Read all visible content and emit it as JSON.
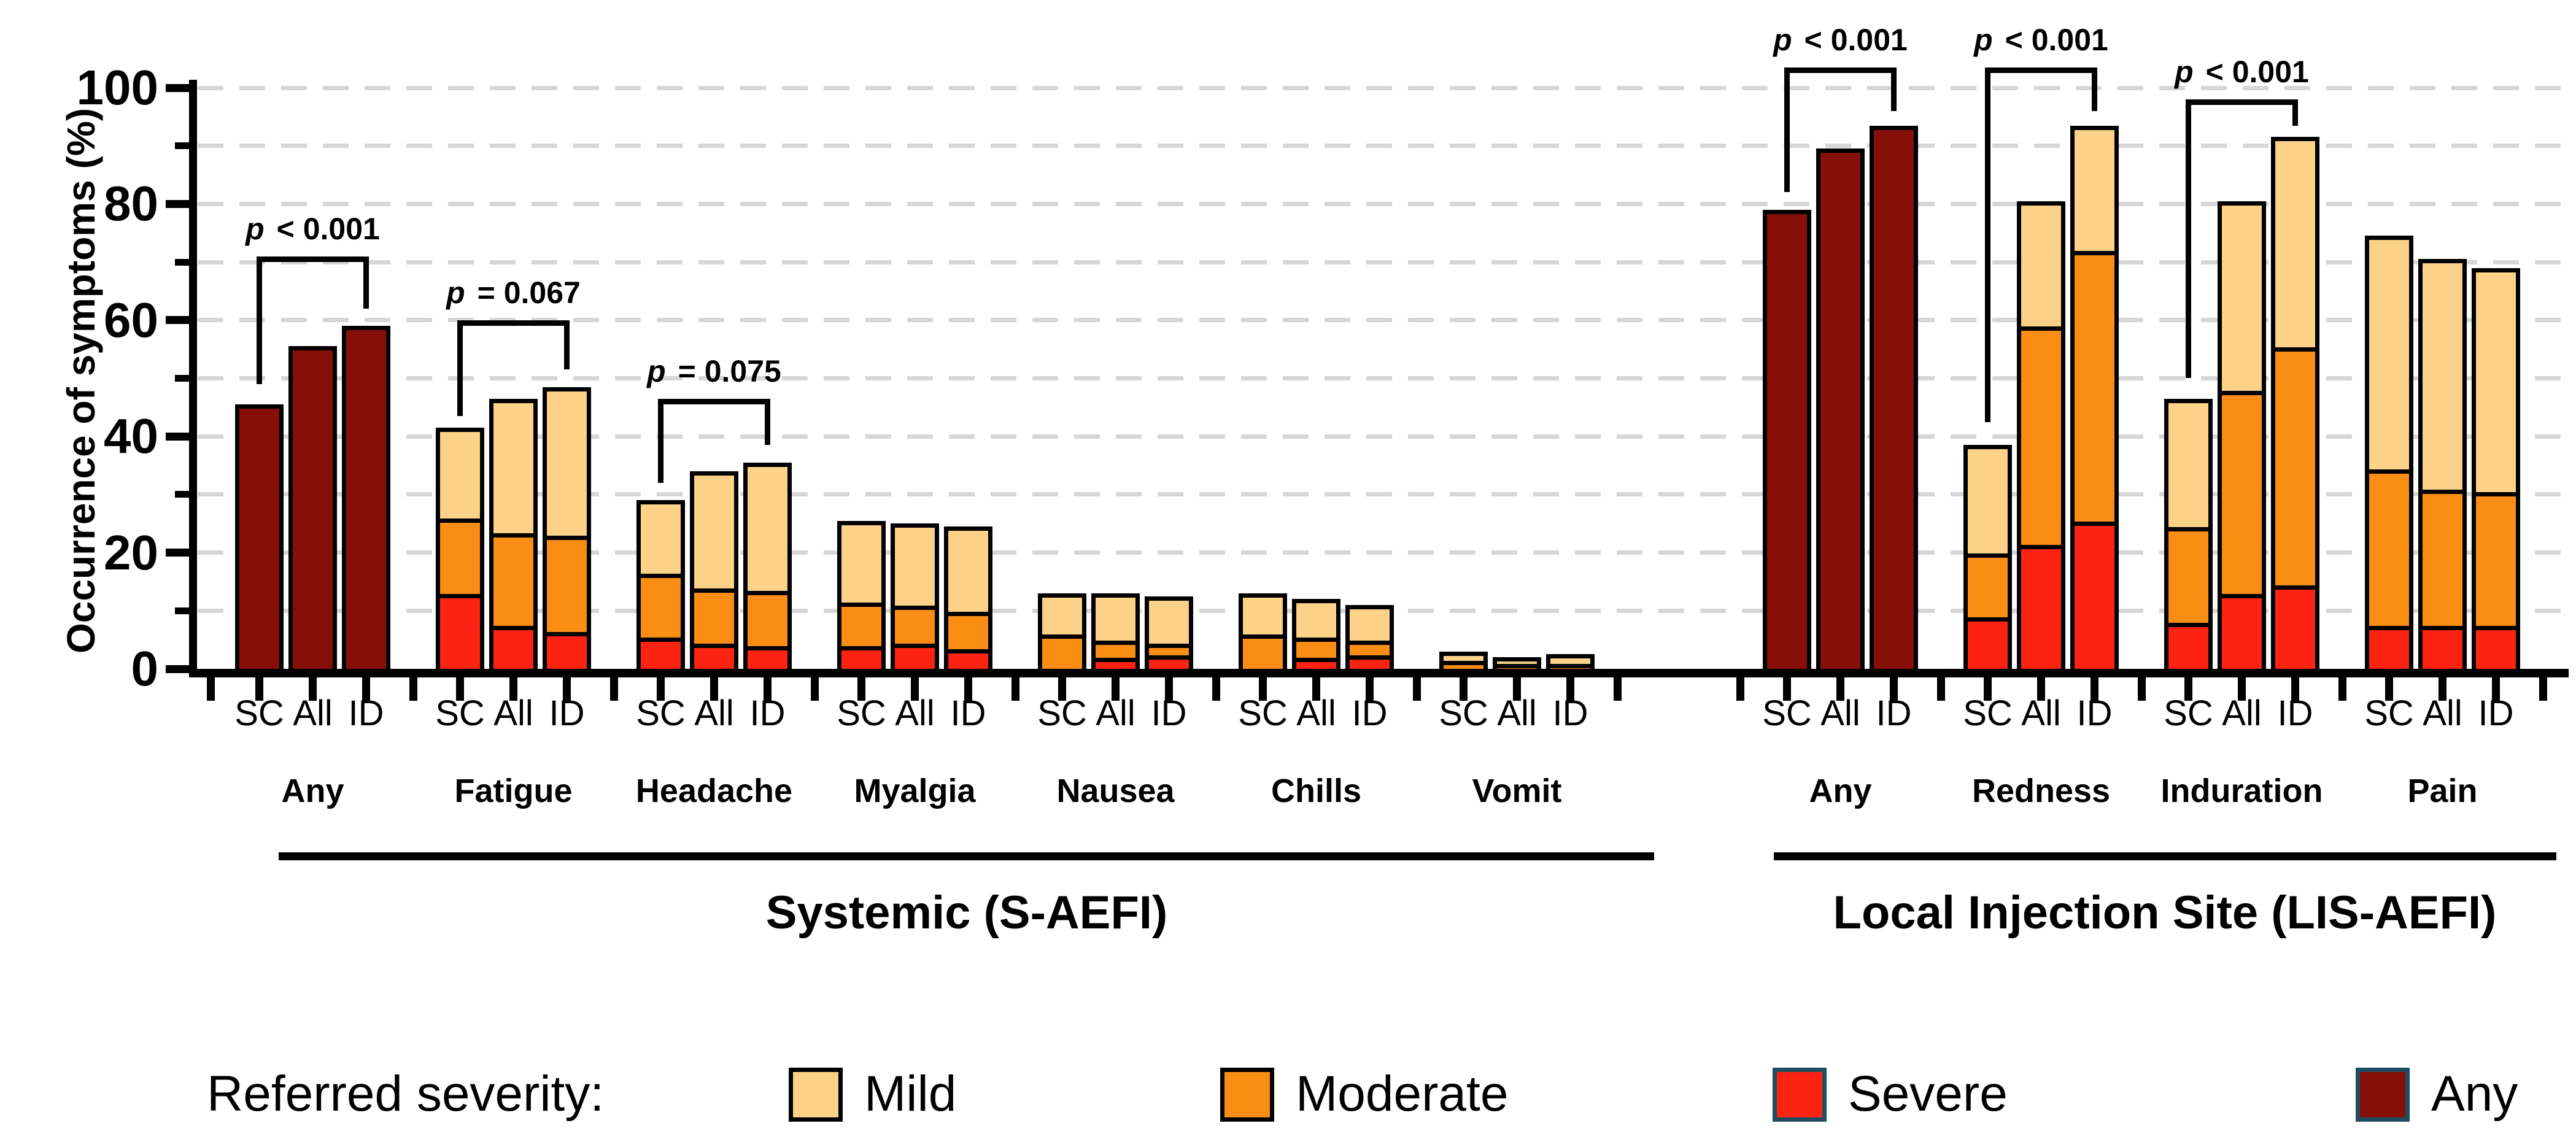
{
  "y_axis": {
    "title": "Occurrence of symptoms (%)",
    "tick_labels": [
      "0",
      "20",
      "40",
      "60",
      "80",
      "100"
    ],
    "major_ticks": [
      0,
      20,
      40,
      60,
      80,
      100
    ],
    "minor_ticks": [
      10,
      30,
      50,
      70,
      90
    ],
    "ymax": 100
  },
  "bar_labels": [
    "SC",
    "All",
    "ID"
  ],
  "sections": [
    {
      "id": "systemic",
      "label": "Systemic (S-AEFI)"
    },
    {
      "id": "lis",
      "label": "Local Injection Site (LIS-AEFI)"
    }
  ],
  "legend": {
    "title": "Referred severity:",
    "items": [
      {
        "key": "mild",
        "label": "Mild",
        "color": "#fbd287",
        "border": "#000000"
      },
      {
        "key": "moderate",
        "label": "Moderate",
        "color": "#fa8e14",
        "border": "#000000"
      },
      {
        "key": "severe",
        "label": "Severe",
        "color": "#fc2312",
        "border": "#1e4d62"
      },
      {
        "key": "any",
        "label": "Any",
        "color": "#870f0a",
        "border": "#1e4d62"
      }
    ]
  },
  "chart_data": {
    "type": "bar",
    "stacked": true,
    "title": "",
    "xlabel": "",
    "ylabel": "Occurrence of symptoms (%)",
    "ylim": [
      0,
      100
    ],
    "grid": "horizontal dashed every 10%",
    "bar_categories": [
      "SC",
      "All",
      "ID"
    ],
    "groups": [
      {
        "symptom": "Any",
        "section": "systemic",
        "type": "any",
        "values": {
          "SC": 45.5,
          "All": 55.5,
          "ID": 59
        },
        "p_annotation": {
          "label": "p < 0.001",
          "bar_top_pct": 71,
          "left_leg_bottom_pct": 49,
          "right_leg_bottom_pct": 62
        }
      },
      {
        "symptom": "Fatigue",
        "section": "systemic",
        "type": "stacked",
        "values": {
          "SC": {
            "severe": 12.5,
            "moderate": 13,
            "mild": 16
          },
          "All": {
            "severe": 7,
            "moderate": 16,
            "mild": 23.5
          },
          "ID": {
            "severe": 6,
            "moderate": 16.5,
            "mild": 26
          }
        },
        "p_annotation": {
          "label": "p = 0.067",
          "bar_top_pct": 60,
          "left_leg_bottom_pct": 43.5,
          "right_leg_bottom_pct": 51.5
        }
      },
      {
        "symptom": "Headache",
        "section": "systemic",
        "type": "stacked",
        "values": {
          "SC": {
            "severe": 5,
            "moderate": 11,
            "mild": 13
          },
          "All": {
            "severe": 4,
            "moderate": 9.5,
            "mild": 20.5
          },
          "ID": {
            "severe": 3.5,
            "moderate": 9.5,
            "mild": 22.5
          }
        },
        "p_annotation": {
          "label": "p = 0.075",
          "bar_top_pct": 46.5,
          "left_leg_bottom_pct": 32,
          "right_leg_bottom_pct": 38.5
        }
      },
      {
        "symptom": "Myalgia",
        "section": "systemic",
        "type": "stacked",
        "values": {
          "SC": {
            "severe": 3.5,
            "moderate": 7.5,
            "mild": 14.5
          },
          "All": {
            "severe": 4,
            "moderate": 6.5,
            "mild": 14.5
          },
          "ID": {
            "severe": 3,
            "moderate": 6.5,
            "mild": 15
          }
        }
      },
      {
        "symptom": "Nausea",
        "section": "systemic",
        "type": "stacked",
        "values": {
          "SC": {
            "severe": 0,
            "moderate": 5.5,
            "mild": 7.5
          },
          "All": {
            "severe": 1.5,
            "moderate": 3,
            "mild": 8.5
          },
          "ID": {
            "severe": 2,
            "moderate": 2,
            "mild": 8.5
          }
        }
      },
      {
        "symptom": "Chills",
        "section": "systemic",
        "type": "stacked",
        "values": {
          "SC": {
            "severe": 0,
            "moderate": 5.5,
            "mild": 7.5
          },
          "All": {
            "severe": 1.5,
            "moderate": 3.5,
            "mild": 7
          },
          "ID": {
            "severe": 2,
            "moderate": 2.5,
            "mild": 6.5
          }
        }
      },
      {
        "symptom": "Vomit",
        "section": "systemic",
        "type": "stacked",
        "values": {
          "SC": {
            "severe": 0,
            "moderate": 1,
            "mild": 2
          },
          "All": {
            "severe": 0,
            "moderate": 0.5,
            "mild": 1.5
          },
          "ID": {
            "severe": 0,
            "moderate": 0.5,
            "mild": 2
          }
        }
      },
      {
        "symptom": "Any",
        "section": "lis",
        "type": "any",
        "values": {
          "SC": 79,
          "All": 89.5,
          "ID": 93.5
        },
        "p_annotation": {
          "label": "p < 0.001",
          "bar_top_pct": 103.5,
          "left_leg_bottom_pct": 82,
          "right_leg_bottom_pct": 96
        }
      },
      {
        "symptom": "Redness",
        "section": "lis",
        "type": "stacked",
        "values": {
          "SC": {
            "severe": 8.5,
            "moderate": 11,
            "mild": 19
          },
          "All": {
            "severe": 21,
            "moderate": 37.5,
            "mild": 22
          },
          "ID": {
            "severe": 25,
            "moderate": 46.5,
            "mild": 22
          }
        },
        "p_annotation": {
          "label": "p < 0.001",
          "bar_top_pct": 103.5,
          "left_leg_bottom_pct": 42.5,
          "right_leg_bottom_pct": 96
        }
      },
      {
        "symptom": "Induration",
        "section": "lis",
        "type": "stacked",
        "values": {
          "SC": {
            "severe": 7.5,
            "moderate": 16.5,
            "mild": 22.5
          },
          "All": {
            "severe": 12.5,
            "moderate": 35,
            "mild": 33
          },
          "ID": {
            "severe": 14,
            "moderate": 41,
            "mild": 36.5
          }
        },
        "p_annotation": {
          "label": "p < 0.001",
          "bar_top_pct": 98,
          "left_leg_bottom_pct": 50,
          "right_leg_bottom_pct": 93.5
        }
      },
      {
        "symptom": "Pain",
        "section": "lis",
        "type": "stacked",
        "values": {
          "SC": {
            "severe": 7,
            "moderate": 27,
            "mild": 40.5
          },
          "All": {
            "severe": 7,
            "moderate": 23.5,
            "mild": 40
          },
          "ID": {
            "severe": 7,
            "moderate": 23,
            "mild": 39
          }
        }
      }
    ]
  }
}
